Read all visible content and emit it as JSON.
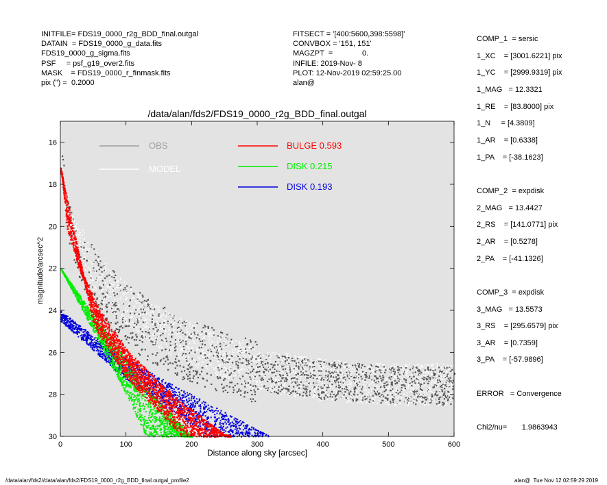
{
  "header_left": [
    "INITFILE= FDS19_0000_r2g_BDD_final.outgal",
    "DATAIN  = FDS19_0000_g_data.fits",
    "FDS19_0000_g_sigma.fits",
    "PSF     = psf_g19_over2.fits",
    "MASK    = FDS19_0000_r_finmask.fits",
    "pix (\") =  0.2000"
  ],
  "header_middle": [
    "FITSECT = '[400:5600,398:5598]'",
    "CONVBOX = '151, 151'",
    "MAGZPT  =              0.",
    "INFILE: 2019-Nov- 8",
    "PLOT: 12-Nov-2019 02:59:25.00",
    "alan@"
  ],
  "components": [
    [
      "COMP_1  = sersic",
      "1_XC    = [3001.6221] pix",
      "1_YC    = [2999.9319] pix",
      "1_MAG   = 12.3321",
      "1_RE    = [83.8000] pix",
      "1_N     = [4.3809]",
      "1_AR    = [0.6338]",
      "1_PA    = [-38.1623]"
    ],
    [
      "COMP_2  = expdisk",
      "2_MAG   = 13.4427",
      "2_RS    = [141.0771] pix",
      "2_AR    = [0.5278]",
      "2_PA    = [-41.1326]"
    ],
    [
      "COMP_3  = expdisk",
      "3_MAG   = 13.5573",
      "3_RS    = [295.6579] pix",
      "3_AR    = [0.7359]",
      "3_PA    = [-57.9896]"
    ],
    [
      "ERROR   = Convergence"
    ],
    [
      "Chi2/nu=       1.9863943"
    ]
  ],
  "footer_left": "/data/alan/fds2//data/alan/fds2/FDS19_0000_r2g_BDD_final.outgal_profile2",
  "footer_right": "alan@  Tue Nov 12 02:59:29 2019",
  "colors": {
    "background": "#e3e3e3",
    "obs": "#555555",
    "model": "#ffffff",
    "bulge": "#ff0000",
    "disk1": "#00ee00",
    "disk2": "#0000dd",
    "obs_legend": "#a0a0a0"
  },
  "chart_data": {
    "type": "scatter",
    "title": "/data/alan/fds2/FDS19_0000_r2g_BDD_final.outgal",
    "xlabel": "Distance along sky [arcsec]",
    "ylabel": "magnitude/arcsec^2",
    "xlim": [
      0,
      600
    ],
    "ylim": [
      30,
      15
    ],
    "x_ticks": [
      "0",
      "100",
      "200",
      "300",
      "400",
      "500",
      "600"
    ],
    "y_ticks": [
      "16",
      "18",
      "20",
      "22",
      "24",
      "26",
      "28",
      "30"
    ],
    "legend": [
      {
        "label": "OBS",
        "value": "",
        "color": "#a0a0a0"
      },
      {
        "label": "MODEL",
        "value": "",
        "color": "#ffffff"
      },
      {
        "label": "BULGE",
        "value": "0.593",
        "color": "#ff0000"
      },
      {
        "label": "DISK",
        "value": "0.215",
        "color": "#00ee00"
      },
      {
        "label": "DISK",
        "value": "0.193",
        "color": "#0000dd"
      }
    ],
    "series": [
      {
        "name": "OBS",
        "description_points": [
          [
            2,
            17.5
          ],
          [
            10,
            19.8
          ],
          [
            30,
            21.5
          ],
          [
            60,
            23.0
          ],
          [
            100,
            24.2
          ],
          [
            150,
            25.2
          ],
          [
            200,
            26.0
          ],
          [
            300,
            26.9
          ],
          [
            400,
            27.3
          ],
          [
            500,
            27.5
          ],
          [
            600,
            27.6
          ]
        ]
      },
      {
        "name": "MODEL",
        "description_points": [
          [
            1,
            17.0
          ],
          [
            10,
            19.5
          ],
          [
            30,
            21.0
          ],
          [
            60,
            22.5
          ],
          [
            100,
            23.7
          ],
          [
            150,
            24.8
          ],
          [
            200,
            25.6
          ],
          [
            300,
            26.8
          ],
          [
            400,
            27.3
          ],
          [
            500,
            27.5
          ],
          [
            600,
            27.5
          ]
        ]
      },
      {
        "name": "BULGE",
        "description_points": [
          [
            1,
            17.2
          ],
          [
            10,
            20.0
          ],
          [
            30,
            22.0
          ],
          [
            60,
            24.0
          ],
          [
            100,
            25.8
          ],
          [
            150,
            27.4
          ],
          [
            200,
            28.7
          ],
          [
            250,
            29.9
          ]
        ],
        "band_min": [
          [
            0,
            17.2
          ],
          [
            50,
            24.5
          ],
          [
            100,
            27.0
          ],
          [
            190,
            30
          ]
        ]
      },
      {
        "name": "DISK",
        "description_points": [
          [
            0,
            22.0
          ],
          [
            50,
            25.0
          ],
          [
            100,
            28.0
          ],
          [
            130,
            30.0
          ]
        ],
        "band_max": [
          [
            0,
            22.0
          ],
          [
            80,
            25.5
          ],
          [
            150,
            28.3
          ],
          [
            200,
            30.0
          ]
        ]
      },
      {
        "name": "DISK",
        "description_points": [
          [
            0,
            24.0
          ],
          [
            50,
            25.2
          ],
          [
            100,
            26.3
          ],
          [
            200,
            28.0
          ],
          [
            320,
            30.0
          ]
        ],
        "band_min": [
          [
            0,
            24.2
          ],
          [
            100,
            27.0
          ],
          [
            240,
            30.0
          ]
        ]
      }
    ]
  }
}
